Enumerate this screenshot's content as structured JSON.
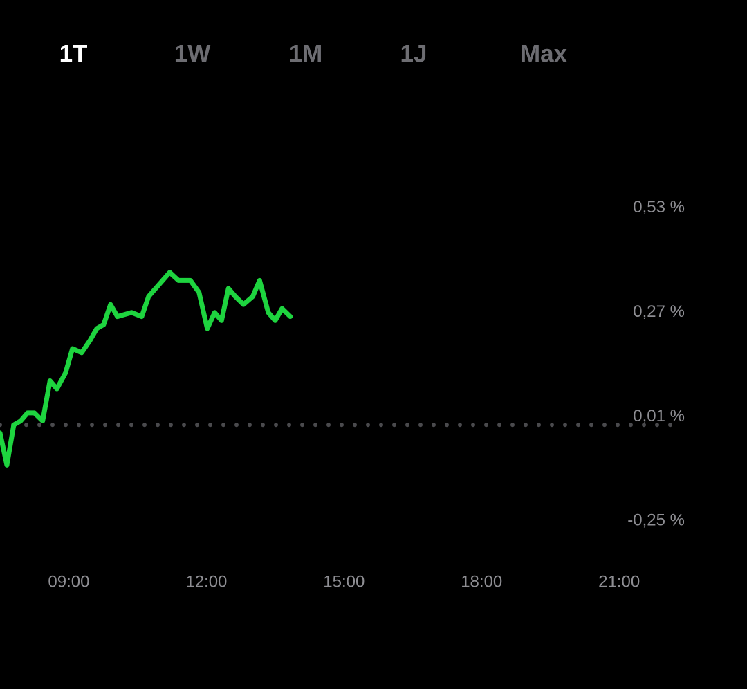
{
  "tabs": {
    "items": [
      "1T",
      "1W",
      "1M",
      "1J",
      "Max"
    ],
    "active": 0
  },
  "chart_data": {
    "type": "line",
    "x": [
      7.5,
      7.65,
      7.8,
      7.95,
      8.1,
      8.25,
      8.43,
      8.59,
      8.74,
      8.93,
      9.08,
      9.28,
      9.46,
      9.61,
      9.76,
      9.91,
      10.06,
      10.37,
      10.59,
      10.74,
      10.97,
      11.2,
      11.39,
      11.65,
      11.84,
      12.02,
      12.18,
      12.33,
      12.48,
      12.63,
      12.81,
      13.01,
      13.16,
      13.35,
      13.5,
      13.65,
      13.83
    ],
    "series": [
      {
        "color": "#1ed43f",
        "values": [
          -0.02,
          -0.1,
          0.0,
          0.01,
          0.03,
          0.03,
          0.01,
          0.11,
          0.09,
          0.13,
          0.19,
          0.18,
          0.21,
          0.24,
          0.25,
          0.3,
          0.27,
          0.28,
          0.27,
          0.32,
          0.35,
          0.38,
          0.36,
          0.36,
          0.33,
          0.24,
          0.28,
          0.26,
          0.34,
          0.32,
          0.3,
          0.32,
          0.36,
          0.28,
          0.26,
          0.29,
          0.27
        ]
      }
    ],
    "reference_line": 0,
    "xlim": [
      7.5,
      22.4
    ],
    "xticks": [
      {
        "value": 9,
        "label": "09:00"
      },
      {
        "value": 12,
        "label": "12:00"
      },
      {
        "value": 15,
        "label": "15:00"
      },
      {
        "value": 18,
        "label": "18:00"
      },
      {
        "value": 21,
        "label": "21:00"
      }
    ],
    "ylim": [
      -0.32,
      0.8
    ],
    "yticks": [
      {
        "value": 0.53,
        "label": "0,53 %"
      },
      {
        "value": 0.27,
        "label": "0,27 %"
      },
      {
        "value": 0.01,
        "label": "0,01 %"
      },
      {
        "value": -0.25,
        "label": "-0,25 %"
      }
    ]
  }
}
